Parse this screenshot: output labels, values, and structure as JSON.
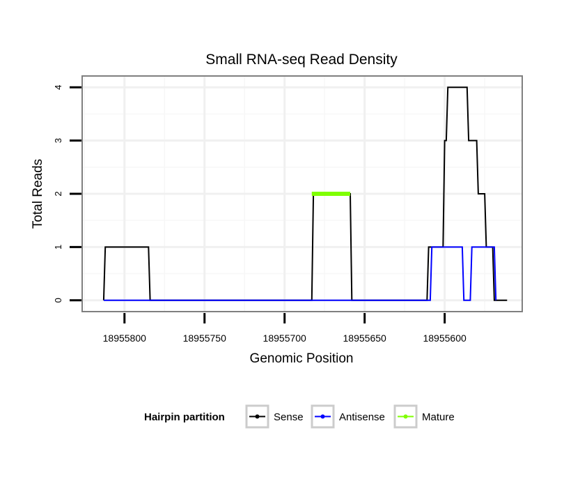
{
  "chart_data": {
    "type": "line",
    "title": "Small RNA-seq Read Density",
    "xlabel": "Genomic Position",
    "ylabel": "Total Reads",
    "x_reversed": true,
    "xlim": [
      18955826,
      18955552
    ],
    "ylim": [
      -0.2,
      4.2
    ],
    "xticks": [
      18955800,
      18955750,
      18955700,
      18955650,
      18955600
    ],
    "yticks": [
      0,
      1,
      2,
      3,
      4
    ],
    "grid": true,
    "legend": {
      "title": "Hairpin partition",
      "position": "bottom",
      "entries": [
        "Sense",
        "Antisense",
        "Mature"
      ]
    },
    "colors": {
      "Sense": "#000000",
      "Antisense": "#0000ff",
      "Mature": "#7fff00"
    },
    "series": [
      {
        "name": "Sense",
        "x": [
          18955813,
          18955812,
          18955785,
          18955784,
          18955683,
          18955682,
          18955659,
          18955658,
          18955611,
          18955610,
          18955601,
          18955600,
          18955599,
          18955598,
          18955586,
          18955585,
          18955580,
          18955579,
          18955575,
          18955574,
          18955570,
          18955569,
          18955561
        ],
        "y": [
          0,
          1,
          1,
          0,
          0,
          2,
          2,
          0,
          0,
          1,
          1,
          3,
          3,
          4,
          4,
          3,
          3,
          2,
          2,
          1,
          1,
          0,
          0
        ]
      },
      {
        "name": "Antisense",
        "x": [
          18955813,
          18955609,
          18955608,
          18955589,
          18955588,
          18955584,
          18955583,
          18955569,
          18955568
        ],
        "y": [
          0,
          0,
          1,
          1,
          0,
          0,
          1,
          1,
          0
        ]
      },
      {
        "name": "Mature",
        "x": [
          18955683,
          18955659
        ],
        "y": [
          2,
          2
        ]
      }
    ]
  }
}
